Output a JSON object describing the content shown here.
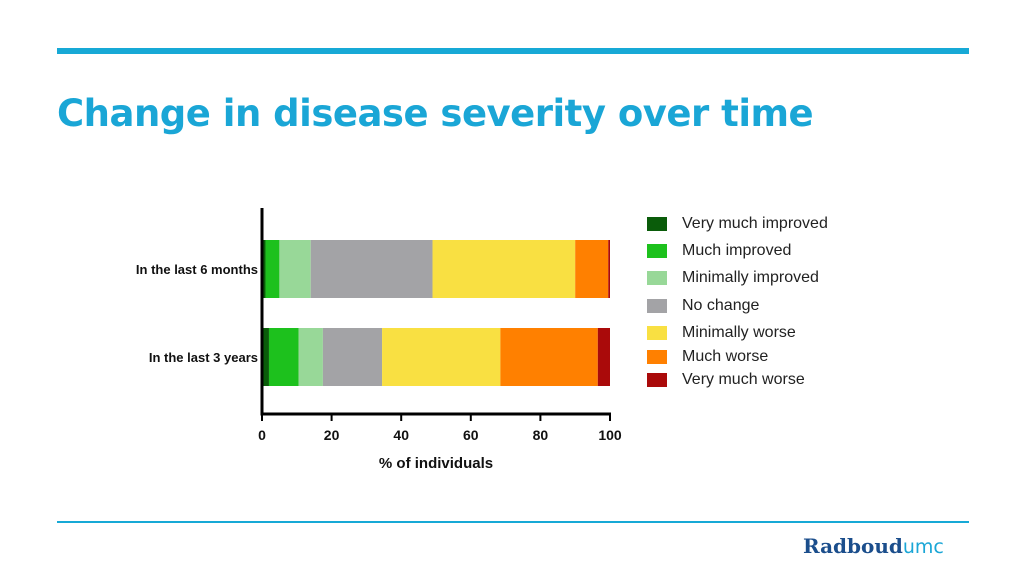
{
  "slide": {
    "title": "Change in disease severity over time",
    "logo_part1": "Radboud",
    "logo_part2": "umc"
  },
  "colors": {
    "accent": "#17a9d6",
    "title": "#1aa6d6",
    "logo_dark": "#1b4e8c"
  },
  "chart_data": {
    "type": "bar",
    "orientation": "horizontal",
    "stacked": true,
    "categories": [
      "In the last 6 months",
      "In the last 3 years"
    ],
    "series": [
      {
        "name": "Very much improved",
        "color": "#0a5c0a",
        "values": [
          1,
          2
        ]
      },
      {
        "name": "Much improved",
        "color": "#1dc11d",
        "values": [
          4,
          8.5
        ]
      },
      {
        "name": "Minimally improved",
        "color": "#98d898",
        "values": [
          9,
          7
        ]
      },
      {
        "name": "No change",
        "color": "#a3a3a6",
        "values": [
          35,
          17
        ]
      },
      {
        "name": "Minimally worse",
        "color": "#f9e042",
        "values": [
          41,
          34
        ]
      },
      {
        "name": "Much worse",
        "color": "#ff8000",
        "values": [
          9.5,
          28
        ]
      },
      {
        "name": "Very much worse",
        "color": "#aa0a0a",
        "values": [
          0.5,
          3.5
        ]
      }
    ],
    "xlabel": "% of individuals",
    "ylabel": "",
    "xlim": [
      0,
      100
    ],
    "xticks": [
      0,
      20,
      40,
      60,
      80,
      100
    ],
    "grid": false,
    "legend": "right"
  }
}
